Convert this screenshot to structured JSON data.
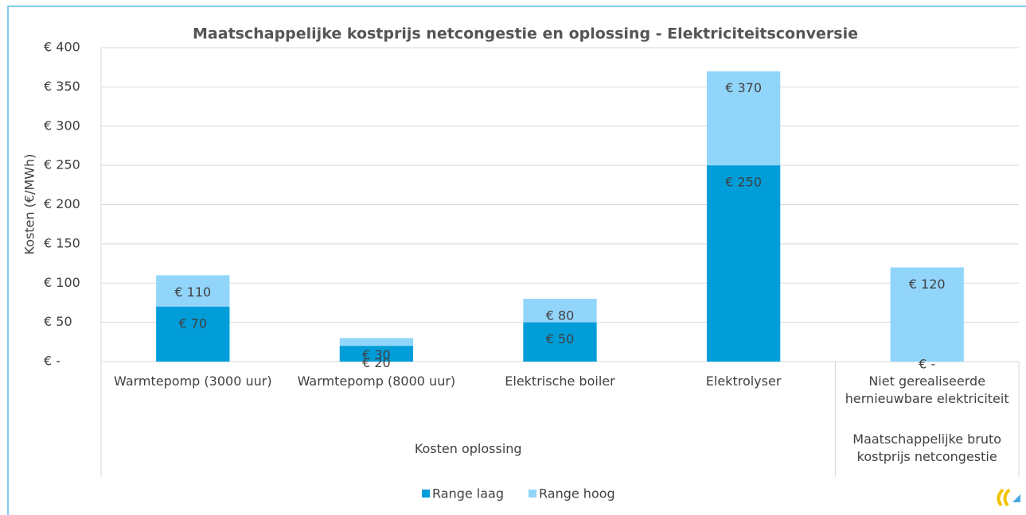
{
  "chart_data": {
    "type": "bar",
    "title": "Maatschappelijke kostprijs netcongestie en oplossing - Elektriciteitsconversie",
    "y_label": "Kosten (€/MWh)",
    "categories": [
      "Warmtepomp (3000 uur)",
      "Warmtepomp (8000 uur)",
      "Elektrische boiler",
      "Elektrolyser",
      "Niet gerealiseerde hernieuwbare elektriciteit"
    ],
    "category_groups": [
      {
        "label": "Kosten oplossing",
        "count": 4
      },
      {
        "label": "Maatschappelijke bruto kostprijs netcongestie",
        "count": 1
      }
    ],
    "series": [
      {
        "name": "Range hoog",
        "color": "#92d5fb",
        "values": [
          110,
          30,
          80,
          370,
          120
        ],
        "value_labels": [
          "€ 110",
          "€ 30",
          "€ 80",
          "€ 370",
          "€ 120"
        ]
      },
      {
        "name": "Range laag",
        "color": "#009dd9",
        "values": [
          70,
          20,
          50,
          250,
          0
        ],
        "value_labels": [
          "€ 70",
          "€ 20",
          "€ 50",
          "€ 250",
          "€ -"
        ]
      }
    ],
    "legend_order": [
      "Range laag",
      "Range hoog"
    ],
    "ylim": [
      0,
      400
    ],
    "yticks": [
      {
        "value": 0,
        "label": "€ -"
      },
      {
        "value": 50,
        "label": "€ 50"
      },
      {
        "value": 100,
        "label": "€ 100"
      },
      {
        "value": 150,
        "label": "€ 150"
      },
      {
        "value": 200,
        "label": "€ 200"
      },
      {
        "value": 250,
        "label": "€ 250"
      },
      {
        "value": 300,
        "label": "€ 300"
      },
      {
        "value": 350,
        "label": "€ 350"
      },
      {
        "value": 400,
        "label": "€ 400"
      }
    ],
    "grid": true
  }
}
